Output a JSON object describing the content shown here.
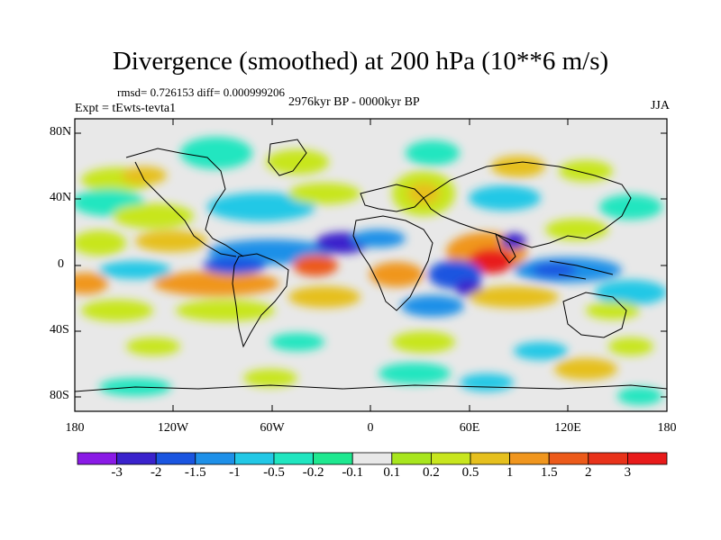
{
  "title": "Divergence (smoothed) at 200 hPa (10**6 m/s)",
  "stats": "rmsd= 0.726153 diff= 0.000999206",
  "experiment": "Expt = tEwts-tevta1",
  "period": "2976kyr BP - 0000kyr BP",
  "season": "JJA",
  "map": {
    "lat_labels": [
      "80N",
      "40N",
      "0",
      "40S",
      "80S"
    ],
    "lon_labels": [
      "180",
      "120W",
      "60W",
      "0",
      "60E",
      "120E",
      "180"
    ]
  },
  "colorbar": {
    "labels": [
      "-3",
      "-2",
      "-1.5",
      "-1",
      "-0.5",
      "-0.2",
      "-0.1",
      "0.1",
      "0.2",
      "0.5",
      "1",
      "1.5",
      "2",
      "3"
    ],
    "colors": [
      "#8a1ae6",
      "#3a22cc",
      "#1a55e0",
      "#1e90e8",
      "#22c8e6",
      "#20e6c0",
      "#1ee890",
      "#e8e8e8",
      "#a8e61e",
      "#c8e61e",
      "#e6c01e",
      "#f0961e",
      "#ec5a1a",
      "#e8321a",
      "#e81a1a"
    ]
  }
}
